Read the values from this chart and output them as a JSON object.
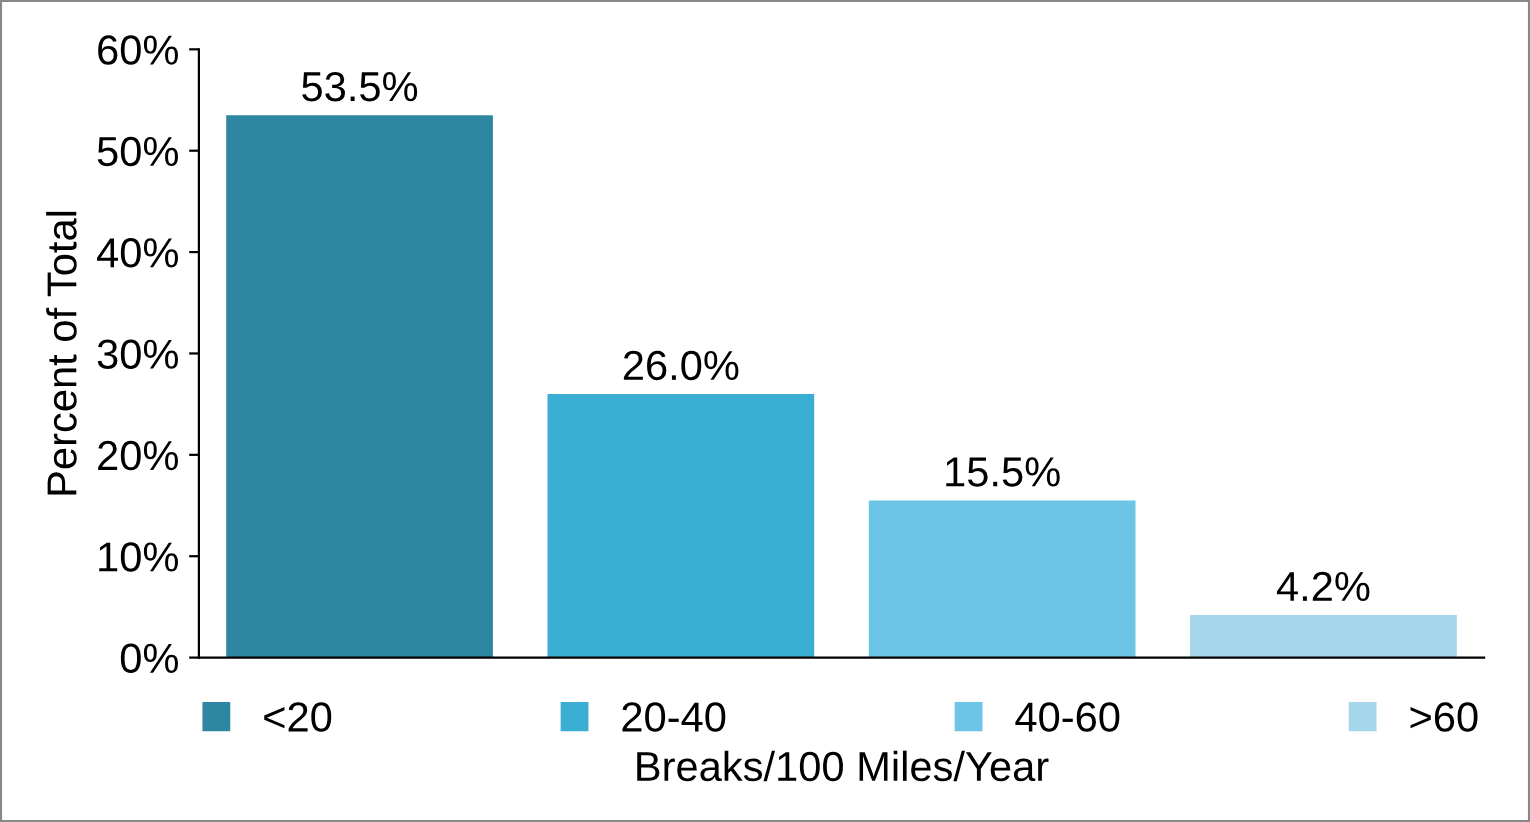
{
  "chart_data": {
    "type": "bar",
    "xlabel": "Breaks/100 Miles/Year",
    "ylabel": "Percent of Total",
    "categories": [
      null,
      null,
      null,
      null
    ],
    "series": [
      {
        "name": "<20",
        "color": "#2f86a3",
        "values": [
          53.5,
          null,
          null,
          null
        ],
        "value_labels": [
          "53.5%",
          null,
          null,
          null
        ]
      },
      {
        "name": "20-40",
        "color": "#3aadd2",
        "values": [
          null,
          26.0,
          null,
          null
        ],
        "value_labels": [
          null,
          "26.0%",
          null,
          null
        ]
      },
      {
        "name": "40-60",
        "color": "#6cc5e4",
        "values": [
          null,
          null,
          15.5,
          null
        ],
        "value_labels": [
          null,
          null,
          "15.5%",
          null
        ]
      },
      {
        "name": ">60",
        "color": "#a6d6ea",
        "values": [
          null,
          null,
          null,
          4.2
        ],
        "value_labels": [
          null,
          null,
          null,
          "4.2%"
        ]
      }
    ],
    "ylim": [
      0,
      60
    ],
    "yticks": [
      {
        "value": 0,
        "label": "0%"
      },
      {
        "value": 10,
        "label": "10%"
      },
      {
        "value": 20,
        "label": "20%"
      },
      {
        "value": 30,
        "label": "30%"
      },
      {
        "value": 40,
        "label": "40%"
      },
      {
        "value": 50,
        "label": "50%"
      },
      {
        "value": 60,
        "label": "60%"
      }
    ],
    "grid": false,
    "legend": "bottom"
  }
}
